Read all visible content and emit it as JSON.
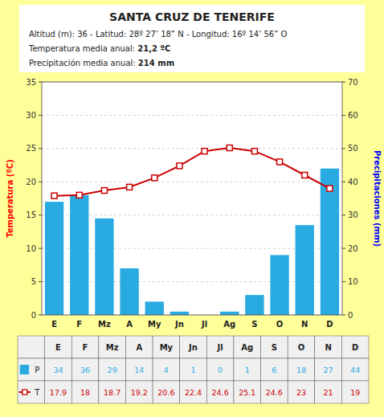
{
  "chart_data": {
    "type": "bar",
    "title": "SANTA CRUZ DE TENERIFE",
    "subtitle": [
      "Altitud (m): 36 - Latitud: 28º 27’ 18” N - Longitud: 16º 14’ 56” O",
      [
        "Temperatura media anual: ",
        "21,2 ºC"
      ],
      [
        "Precipitación media anual: ",
        "214 mm"
      ]
    ],
    "categories": [
      "E",
      "F",
      "Mz",
      "A",
      "My",
      "Jn",
      "Jl",
      "Ag",
      "S",
      "O",
      "N",
      "D"
    ],
    "series": [
      {
        "name": "P",
        "type": "bar",
        "axis": "y2",
        "color": "#29ABE2",
        "values": [
          34,
          36,
          29,
          14,
          4,
          1,
          0,
          1,
          6,
          18,
          27,
          44
        ]
      },
      {
        "name": "T",
        "type": "line",
        "color": "#CC0000",
        "marker": "square",
        "values": [
          17.9,
          18,
          18.7,
          19.2,
          20.6,
          22.4,
          24.6,
          25.1,
          24.6,
          23,
          21,
          19
        ]
      }
    ],
    "y_label": "Temperatura (ºC)",
    "y2_label": "Precipitaciones (mm)",
    "ylim": [
      0,
      35
    ],
    "yticks": [
      0,
      5,
      10,
      15,
      20,
      25,
      30,
      35
    ],
    "y2lim": [
      0,
      70
    ],
    "y2ticks": [
      0,
      10,
      20,
      30,
      40,
      50,
      60,
      70
    ],
    "grid": true,
    "legend": "bottom"
  }
}
